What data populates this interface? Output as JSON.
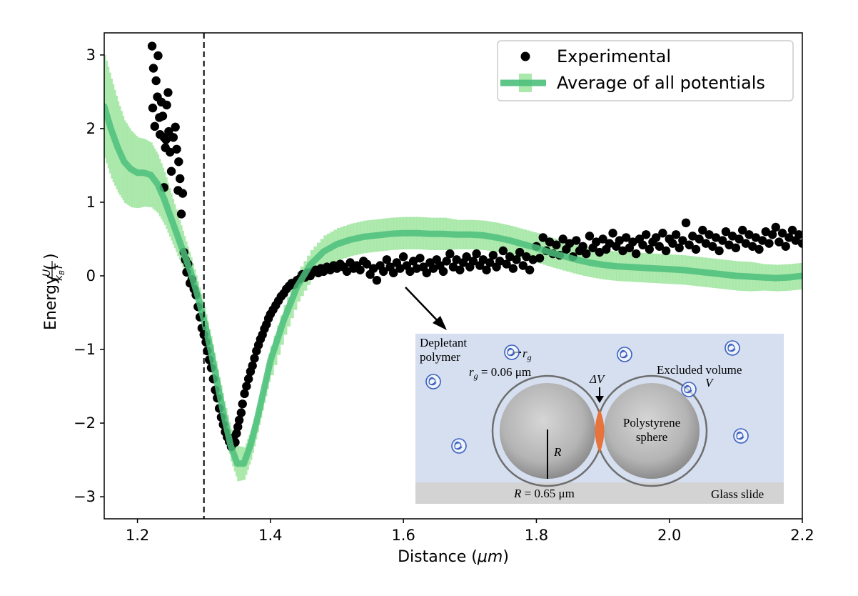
{
  "chart_data": {
    "type": "scatter+line",
    "xlabel": "Distance ($\\mu m$)",
    "xlabel_parts": {
      "prefix": "Distance (",
      "mu": "μm",
      "suffix": ")"
    },
    "ylabel": "Energy (U/k_BT)",
    "ylabel_parts": {
      "prefix": "Energy (",
      "num": "U",
      "den": "k",
      "den_sub": "B",
      "den_tail": "T",
      "suffix": ")"
    },
    "xlim": [
      1.15,
      2.2
    ],
    "ylim": [
      -3.3,
      3.3
    ],
    "x_ticks": [
      1.2,
      1.4,
      1.6,
      1.8,
      2.0,
      2.2
    ],
    "x_tick_labels": [
      "1.2",
      "1.4",
      "1.6",
      "1.8",
      "2.0",
      "2.2"
    ],
    "y_ticks": [
      -3,
      -2,
      -1,
      0,
      1,
      2,
      3
    ],
    "y_tick_labels": [
      "−3",
      "−2",
      "−1",
      "0",
      "1",
      "2",
      "3"
    ],
    "vline_x": 1.3,
    "legend": {
      "position": "top-right",
      "entries": [
        "Experimental",
        "Average of all potentials"
      ]
    },
    "colors": {
      "experimental": "#000000",
      "average": "#4cbf7c",
      "band": "#8fe08f"
    },
    "series": [
      {
        "name": "Experimental",
        "kind": "scatter",
        "points": [
          [
            1.222,
            3.12
          ],
          [
            1.224,
            2.82
          ],
          [
            1.226,
            2.03
          ],
          [
            1.223,
            2.28
          ],
          [
            1.228,
            2.65
          ],
          [
            1.231,
            2.99
          ],
          [
            1.23,
            2.43
          ],
          [
            1.233,
            2.15
          ],
          [
            1.234,
            1.92
          ],
          [
            1.236,
            2.36
          ],
          [
            1.238,
            2.17
          ],
          [
            1.24,
            1.88
          ],
          [
            1.242,
            1.74
          ],
          [
            1.244,
            2.32
          ],
          [
            1.246,
            2.49
          ],
          [
            1.243,
            1.85
          ],
          [
            1.247,
            1.96
          ],
          [
            1.249,
            1.68
          ],
          [
            1.251,
            1.42
          ],
          [
            1.254,
            1.88
          ],
          [
            1.257,
            2.02
          ],
          [
            1.259,
            1.72
          ],
          [
            1.262,
            1.55
          ],
          [
            1.264,
            1.32
          ],
          [
            1.261,
            1.16
          ],
          [
            1.266,
            0.84
          ],
          [
            1.268,
            1.12
          ],
          [
            1.24,
            1.2
          ],
          [
            1.27,
            0.32
          ],
          [
            1.272,
            0.22
          ],
          [
            1.274,
            0.05
          ],
          [
            1.276,
            0.16
          ],
          [
            1.279,
            -0.1
          ],
          [
            1.282,
            -0.05
          ],
          [
            1.285,
            -0.18
          ],
          [
            1.288,
            -0.26
          ],
          [
            1.291,
            -0.42
          ],
          [
            1.294,
            -0.56
          ],
          [
            1.297,
            -0.71
          ],
          [
            1.3,
            -0.8
          ],
          [
            1.303,
            -0.9
          ],
          [
            1.305,
            -1.02
          ],
          [
            1.308,
            -1.14
          ],
          [
            1.311,
            -1.25
          ],
          [
            1.314,
            -1.4
          ],
          [
            1.317,
            -1.55
          ],
          [
            1.32,
            -1.66
          ],
          [
            1.323,
            -1.8
          ],
          [
            1.326,
            -1.92
          ],
          [
            1.329,
            -2.02
          ],
          [
            1.332,
            -2.12
          ],
          [
            1.335,
            -2.19
          ],
          [
            1.338,
            -2.25
          ],
          [
            1.341,
            -2.32
          ],
          [
            1.344,
            -2.2
          ],
          [
            1.347,
            -2.26
          ],
          [
            1.349,
            -2.14
          ],
          [
            1.351,
            -2.05
          ],
          [
            1.353,
            -1.96
          ],
          [
            1.356,
            -1.86
          ],
          [
            1.358,
            -1.74
          ],
          [
            1.361,
            -1.6
          ],
          [
            1.364,
            -1.5
          ],
          [
            1.367,
            -1.4
          ],
          [
            1.37,
            -1.3
          ],
          [
            1.373,
            -1.22
          ],
          [
            1.376,
            -1.12
          ],
          [
            1.379,
            -1.02
          ],
          [
            1.382,
            -0.94
          ],
          [
            1.385,
            -0.86
          ],
          [
            1.388,
            -0.8
          ],
          [
            1.391,
            -0.72
          ],
          [
            1.394,
            -0.66
          ],
          [
            1.397,
            -0.58
          ],
          [
            1.4,
            -0.52
          ],
          [
            1.404,
            -0.46
          ],
          [
            1.408,
            -0.4
          ],
          [
            1.412,
            -0.34
          ],
          [
            1.416,
            -0.28
          ],
          [
            1.42,
            -0.24
          ],
          [
            1.424,
            -0.18
          ],
          [
            1.428,
            -0.14
          ],
          [
            1.432,
            -0.1
          ],
          [
            1.436,
            -0.12
          ],
          [
            1.44,
            -0.06
          ],
          [
            1.444,
            -0.04
          ],
          [
            1.448,
            0.02
          ],
          [
            1.452,
            -0.02
          ],
          [
            1.456,
            0.04
          ],
          [
            1.46,
            0.0
          ],
          [
            1.464,
            0.06
          ],
          [
            1.468,
            0.08
          ],
          [
            1.472,
            0.04
          ],
          [
            1.476,
            0.1
          ],
          [
            1.48,
            0.06
          ],
          [
            1.485,
            0.12
          ],
          [
            1.49,
            0.08
          ],
          [
            1.495,
            0.14
          ],
          [
            1.5,
            0.1
          ],
          [
            1.505,
            0.16
          ],
          [
            1.51,
            0.12
          ],
          [
            1.515,
            0.06
          ],
          [
            1.52,
            0.18
          ],
          [
            1.525,
            0.1
          ],
          [
            1.53,
            0.14
          ],
          [
            1.535,
            0.08
          ],
          [
            1.54,
            0.2
          ],
          [
            1.545,
            0.16
          ],
          [
            1.55,
            0.02
          ],
          [
            1.555,
            0.1
          ],
          [
            1.56,
            -0.06
          ],
          [
            1.565,
            0.14
          ],
          [
            1.57,
            0.06
          ],
          [
            1.575,
            0.22
          ],
          [
            1.58,
            0.12
          ],
          [
            1.585,
            0.04
          ],
          [
            1.59,
            0.18
          ],
          [
            1.595,
            0.1
          ],
          [
            1.6,
            0.26
          ],
          [
            1.605,
            0.14
          ],
          [
            1.61,
            0.06
          ],
          [
            1.615,
            0.2
          ],
          [
            1.62,
            0.1
          ],
          [
            1.625,
            0.24
          ],
          [
            1.63,
            0.12
          ],
          [
            1.635,
            0.04
          ],
          [
            1.64,
            0.18
          ],
          [
            1.645,
            0.1
          ],
          [
            1.65,
            0.22
          ],
          [
            1.655,
            0.14
          ],
          [
            1.66,
            0.06
          ],
          [
            1.665,
            0.2
          ],
          [
            1.67,
            0.3
          ],
          [
            1.675,
            0.12
          ],
          [
            1.68,
            0.22
          ],
          [
            1.685,
            0.08
          ],
          [
            1.69,
            0.18
          ],
          [
            1.695,
            0.26
          ],
          [
            1.7,
            0.12
          ],
          [
            1.705,
            0.2
          ],
          [
            1.71,
            0.3
          ],
          [
            1.715,
            0.14
          ],
          [
            1.72,
            0.22
          ],
          [
            1.725,
            0.08
          ],
          [
            1.73,
            0.18
          ],
          [
            1.735,
            0.28
          ],
          [
            1.74,
            0.12
          ],
          [
            1.745,
            0.2
          ],
          [
            1.75,
            0.34
          ],
          [
            1.755,
            0.16
          ],
          [
            1.76,
            0.26
          ],
          [
            1.765,
            0.1
          ],
          [
            1.77,
            0.22
          ],
          [
            1.775,
            0.32
          ],
          [
            1.78,
            0.14
          ],
          [
            1.785,
            0.26
          ],
          [
            1.79,
            0.08
          ],
          [
            1.795,
            0.22
          ],
          [
            1.8,
            0.4
          ],
          [
            1.805,
            0.24
          ],
          [
            1.81,
            0.52
          ],
          [
            1.815,
            0.34
          ],
          [
            1.82,
            0.46
          ],
          [
            1.825,
            0.3
          ],
          [
            1.83,
            0.42
          ],
          [
            1.835,
            0.28
          ],
          [
            1.84,
            0.5
          ],
          [
            1.845,
            0.36
          ],
          [
            1.85,
            0.44
          ],
          [
            1.855,
            0.26
          ],
          [
            1.86,
            0.48
          ],
          [
            1.865,
            0.34
          ],
          [
            1.87,
            0.4
          ],
          [
            1.875,
            0.3
          ],
          [
            1.88,
            0.54
          ],
          [
            1.885,
            0.38
          ],
          [
            1.89,
            0.46
          ],
          [
            1.895,
            0.32
          ],
          [
            1.9,
            0.5
          ],
          [
            1.905,
            0.36
          ],
          [
            1.91,
            0.44
          ],
          [
            1.915,
            0.58
          ],
          [
            1.92,
            0.4
          ],
          [
            1.925,
            0.48
          ],
          [
            1.93,
            0.34
          ],
          [
            1.935,
            0.52
          ],
          [
            1.94,
            0.38
          ],
          [
            1.945,
            0.46
          ],
          [
            1.95,
            0.3
          ],
          [
            1.955,
            0.5
          ],
          [
            1.96,
            0.42
          ],
          [
            1.965,
            0.56
          ],
          [
            1.97,
            0.36
          ],
          [
            1.975,
            0.46
          ],
          [
            1.98,
            0.52
          ],
          [
            1.985,
            0.4
          ],
          [
            1.99,
            0.58
          ],
          [
            1.995,
            0.34
          ],
          [
            2.0,
            0.5
          ],
          [
            2.005,
            0.44
          ],
          [
            2.01,
            0.56
          ],
          [
            2.015,
            0.38
          ],
          [
            2.02,
            0.48
          ],
          [
            2.025,
            0.72
          ],
          [
            2.03,
            0.42
          ],
          [
            2.035,
            0.54
          ],
          [
            2.04,
            0.36
          ],
          [
            2.045,
            0.5
          ],
          [
            2.05,
            0.62
          ],
          [
            2.055,
            0.44
          ],
          [
            2.06,
            0.56
          ],
          [
            2.065,
            0.4
          ],
          [
            2.07,
            0.52
          ],
          [
            2.075,
            0.34
          ],
          [
            2.08,
            0.48
          ],
          [
            2.085,
            0.6
          ],
          [
            2.09,
            0.42
          ],
          [
            2.095,
            0.54
          ],
          [
            2.1,
            0.38
          ],
          [
            2.105,
            0.5
          ],
          [
            2.11,
            0.62
          ],
          [
            2.115,
            0.44
          ],
          [
            2.12,
            0.56
          ],
          [
            2.125,
            0.4
          ],
          [
            2.13,
            0.52
          ],
          [
            2.135,
            0.36
          ],
          [
            2.14,
            0.48
          ],
          [
            2.145,
            0.6
          ],
          [
            2.15,
            0.44
          ],
          [
            2.155,
            0.56
          ],
          [
            2.16,
            0.66
          ],
          [
            2.165,
            0.46
          ],
          [
            2.17,
            0.58
          ],
          [
            2.175,
            0.4
          ],
          [
            2.18,
            0.52
          ],
          [
            2.185,
            0.62
          ],
          [
            2.19,
            0.48
          ],
          [
            2.195,
            0.56
          ],
          [
            2.2,
            0.44
          ]
        ]
      },
      {
        "name": "Average of all potentials",
        "kind": "line_with_error_band",
        "x": [
          1.15,
          1.16,
          1.17,
          1.18,
          1.19,
          1.2,
          1.21,
          1.22,
          1.23,
          1.24,
          1.25,
          1.26,
          1.27,
          1.28,
          1.29,
          1.3,
          1.31,
          1.32,
          1.33,
          1.34,
          1.35,
          1.36,
          1.37,
          1.38,
          1.39,
          1.4,
          1.42,
          1.44,
          1.46,
          1.48,
          1.5,
          1.52,
          1.54,
          1.56,
          1.58,
          1.6,
          1.62,
          1.64,
          1.66,
          1.68,
          1.7,
          1.72,
          1.74,
          1.76,
          1.78,
          1.8,
          1.82,
          1.84,
          1.86,
          1.88,
          1.9,
          1.92,
          1.94,
          1.96,
          1.98,
          2.0,
          2.02,
          2.04,
          2.06,
          2.08,
          2.1,
          2.12,
          2.14,
          2.16,
          2.18,
          2.2
        ],
        "y": [
          2.3,
          2.0,
          1.75,
          1.55,
          1.45,
          1.4,
          1.4,
          1.37,
          1.25,
          1.05,
          0.8,
          0.55,
          0.3,
          0.05,
          -0.25,
          -0.6,
          -1.0,
          -1.45,
          -1.9,
          -2.3,
          -2.55,
          -2.55,
          -2.3,
          -1.95,
          -1.55,
          -1.15,
          -0.6,
          -0.15,
          0.15,
          0.33,
          0.43,
          0.49,
          0.53,
          0.55,
          0.57,
          0.58,
          0.58,
          0.57,
          0.57,
          0.56,
          0.56,
          0.55,
          0.52,
          0.48,
          0.43,
          0.38,
          0.32,
          0.27,
          0.22,
          0.18,
          0.15,
          0.13,
          0.12,
          0.11,
          0.1,
          0.09,
          0.08,
          0.06,
          0.04,
          0.02,
          0.0,
          -0.01,
          -0.02,
          -0.03,
          -0.02,
          0.0
        ],
        "err": [
          0.7,
          0.68,
          0.62,
          0.56,
          0.52,
          0.48,
          0.46,
          0.44,
          0.4,
          0.36,
          0.32,
          0.28,
          0.24,
          0.2,
          0.18,
          0.18,
          0.18,
          0.18,
          0.2,
          0.22,
          0.24,
          0.22,
          0.2,
          0.18,
          0.18,
          0.2,
          0.2,
          0.2,
          0.2,
          0.22,
          0.22,
          0.22,
          0.22,
          0.22,
          0.22,
          0.22,
          0.22,
          0.22,
          0.22,
          0.2,
          0.2,
          0.2,
          0.2,
          0.2,
          0.2,
          0.2,
          0.2,
          0.2,
          0.2,
          0.2,
          0.2,
          0.2,
          0.2,
          0.2,
          0.2,
          0.2,
          0.2,
          0.2,
          0.2,
          0.2,
          0.2,
          0.2,
          0.18,
          0.18,
          0.18,
          0.18
        ]
      }
    ]
  },
  "inset": {
    "labels": {
      "depletant_1": "Depletant",
      "depletant_2": "polymer",
      "rg_eq_sym": "r",
      "rg_eq_sub": "g",
      "rg_eq_val": " = 0.06 μm",
      "rg_sym": "r",
      "rg_sub": "g",
      "delta_v": "ΔV",
      "excluded": "Excluded volume",
      "v_sym": "V",
      "polystyrene_1": "Polystyrene",
      "polystyrene_2": "sphere",
      "r_sym": "R",
      "r_eq_sym": "R",
      "r_eq_val": " = 0.65 μm",
      "glass": "Glass slide"
    },
    "colors": {
      "background": "#d5dff0",
      "glass": "#d3d3d3",
      "overlap": "#e8743b",
      "polymer": "#3a5fc0"
    }
  }
}
